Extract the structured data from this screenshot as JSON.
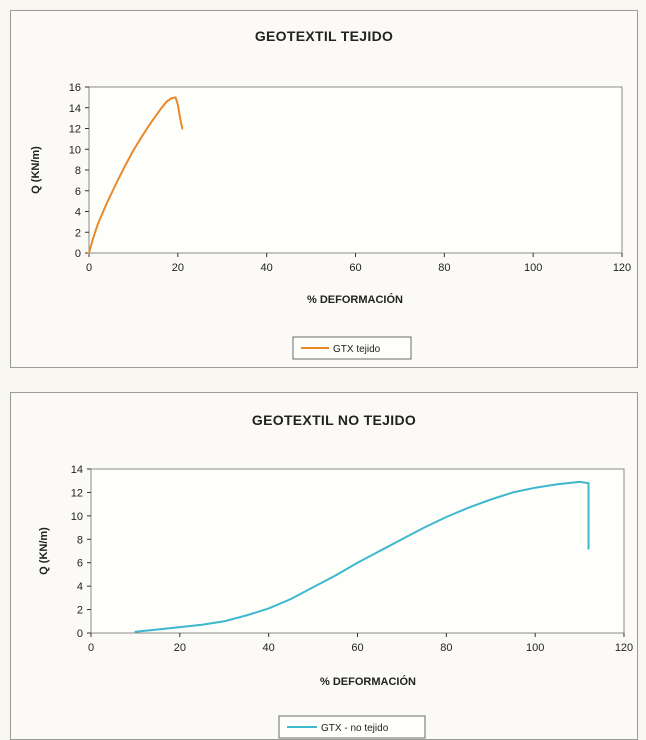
{
  "chart_data": [
    {
      "type": "line",
      "title": "GEOTEXTIL TEJIDO",
      "xlabel": "% DEFORMACIÓN",
      "ylabel": "Q (KN/m)",
      "xlim": [
        0,
        120
      ],
      "ylim": [
        0,
        16
      ],
      "xticks": [
        0,
        20,
        40,
        60,
        80,
        100,
        120
      ],
      "yticks": [
        0,
        2,
        4,
        6,
        8,
        10,
        12,
        14,
        16
      ],
      "grid": false,
      "legend_position": "bottom-center",
      "series": [
        {
          "name": "GTX tejido",
          "color": "#e8892a",
          "x": [
            0,
            1,
            2,
            4,
            6,
            8,
            10,
            12,
            14,
            16,
            17.5,
            18.5,
            19.5,
            20,
            20.5,
            21
          ],
          "y": [
            0,
            1.5,
            2.8,
            4.8,
            6.6,
            8.3,
            9.9,
            11.3,
            12.6,
            13.8,
            14.6,
            14.9,
            15.0,
            14.3,
            13.0,
            12.0
          ]
        }
      ]
    },
    {
      "type": "line",
      "title": "GEOTEXTIL NO TEJIDO",
      "xlabel": "% DEFORMACIÓN",
      "ylabel": "Q (KN/m)",
      "xlim": [
        0,
        120
      ],
      "ylim": [
        0,
        14
      ],
      "xticks": [
        0,
        20,
        40,
        60,
        80,
        100,
        120
      ],
      "yticks": [
        0,
        2,
        4,
        6,
        8,
        10,
        12,
        14
      ],
      "grid": false,
      "legend_position": "bottom-center",
      "series": [
        {
          "name": "GTX - no tejido",
          "color": "#3cb8cf",
          "x": [
            10,
            15,
            20,
            25,
            30,
            35,
            40,
            45,
            50,
            55,
            60,
            65,
            70,
            75,
            80,
            85,
            90,
            95,
            100,
            105,
            110,
            112,
            112,
            112
          ],
          "y": [
            0.1,
            0.3,
            0.5,
            0.7,
            1.0,
            1.5,
            2.1,
            2.9,
            3.9,
            4.9,
            6.0,
            7.0,
            8.0,
            9.0,
            9.9,
            10.7,
            11.4,
            12.0,
            12.4,
            12.7,
            12.9,
            12.8,
            10.0,
            7.2
          ]
        }
      ]
    }
  ]
}
